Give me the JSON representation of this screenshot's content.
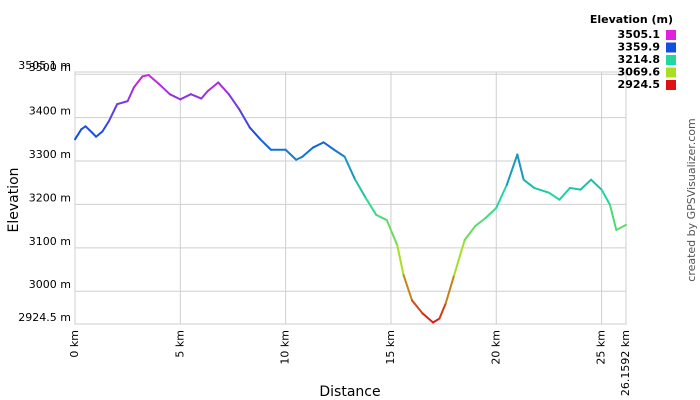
{
  "chart_data": {
    "type": "line",
    "y_label": "Elevation",
    "x_label": "Distance",
    "credit": "created by GPSVisualizer.com",
    "legend_title": "Elevation (m)",
    "legend": [
      {
        "label": "3505.1",
        "value": 3505.1,
        "color": "#e020e0"
      },
      {
        "label": "3359.9",
        "value": 3359.9,
        "color": "#1050e0"
      },
      {
        "label": "3214.8",
        "value": 3214.8,
        "color": "#20d8a0"
      },
      {
        "label": "3069.6",
        "value": 3069.6,
        "color": "#a8e020"
      },
      {
        "label": "2924.5",
        "value": 2924.5,
        "color": "#e01010"
      }
    ],
    "x": [
      0,
      0.3,
      0.5,
      0.8,
      1.0,
      1.3,
      1.6,
      2.0,
      2.5,
      2.8,
      3.2,
      3.5,
      4.0,
      4.5,
      5.0,
      5.5,
      6.0,
      6.3,
      6.8,
      7.3,
      7.8,
      8.3,
      8.8,
      9.3,
      10.0,
      10.5,
      10.8,
      11.3,
      11.8,
      12.3,
      12.8,
      13.3,
      13.8,
      14.3,
      14.8,
      15.3,
      15.6,
      16.0,
      16.5,
      17.0,
      17.3,
      17.6,
      18.0,
      18.5,
      19.0,
      19.5,
      20.0,
      20.5,
      21.0,
      21.3,
      21.8,
      22.5,
      23.0,
      23.5,
      24.0,
      24.5,
      25.0,
      25.4,
      25.7,
      26.1592
    ],
    "values": [
      3350,
      3373,
      3380,
      3366,
      3356,
      3368,
      3391,
      3431,
      3438,
      3470,
      3495,
      3498,
      3477,
      3454,
      3442,
      3454,
      3444,
      3461,
      3481,
      3454,
      3419,
      3377,
      3350,
      3326,
      3326,
      3303,
      3310,
      3331,
      3343,
      3326,
      3310,
      3257,
      3215,
      3176,
      3164,
      3106,
      3037,
      2979,
      2949,
      2928,
      2937,
      2972,
      3037,
      3118,
      3150,
      3169,
      3192,
      3245,
      3315,
      3257,
      3238,
      3227,
      3211,
      3238,
      3234,
      3257,
      3234,
      3199,
      3141,
      3153
    ],
    "xlim": [
      0,
      26.1592
    ],
    "xticks": [
      {
        "value": 0,
        "label": "0 km"
      },
      {
        "value": 5,
        "label": "5 km"
      },
      {
        "value": 10,
        "label": "10 km"
      },
      {
        "value": 15,
        "label": "15 km"
      },
      {
        "value": 20,
        "label": "20 km"
      },
      {
        "value": 25,
        "label": "25 km"
      },
      {
        "value": 26.1592,
        "label": "26.1592 km"
      }
    ],
    "ylim": [
      2924.5,
      3505.1
    ],
    "yticks": [
      {
        "value": 2924.5,
        "label": "2924.5 m"
      },
      {
        "value": 3000,
        "label": "3000 m"
      },
      {
        "value": 3100,
        "label": "3100 m"
      },
      {
        "value": 3200,
        "label": "3200 m"
      },
      {
        "value": 3300,
        "label": "3300 m"
      },
      {
        "value": 3400,
        "label": "3400 m"
      },
      {
        "value": 3500,
        "label": "3500 m"
      },
      {
        "value": 3505.1,
        "label": "3505.1 m"
      }
    ],
    "grid": true
  }
}
